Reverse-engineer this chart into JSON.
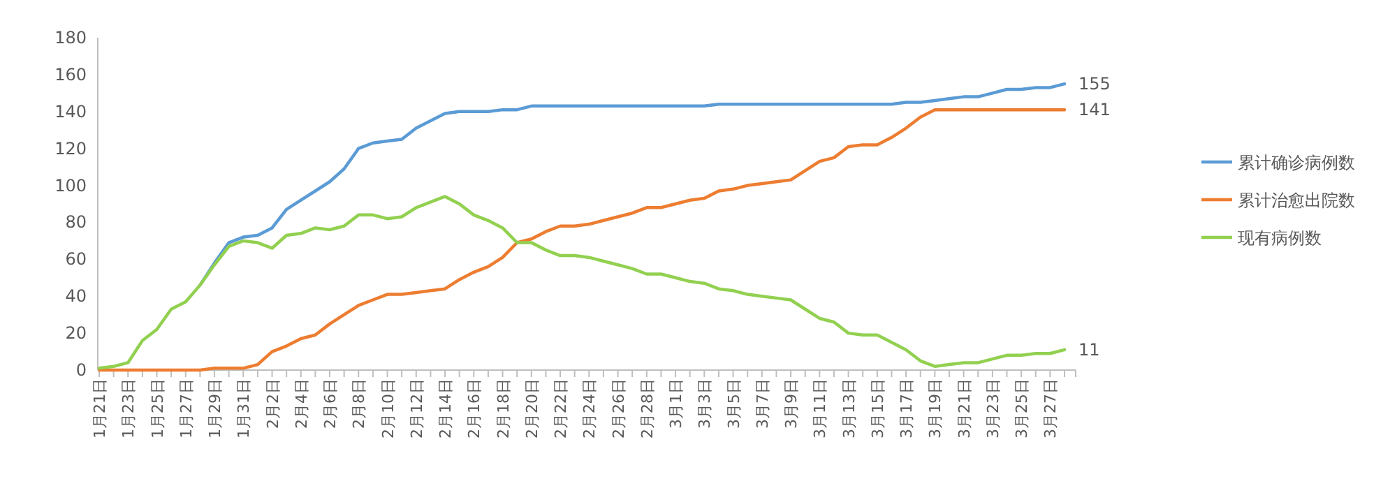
{
  "chart_data": {
    "type": "line",
    "categories": [
      "1月21日",
      null,
      "1月23日",
      null,
      "1月25日",
      null,
      "1月27日",
      null,
      "1月29日",
      null,
      "1月31日",
      null,
      "2月2日",
      null,
      "2月4日",
      null,
      "2月6日",
      null,
      "2月8日",
      null,
      "2月10日",
      null,
      "2月12日",
      null,
      "2月14日",
      null,
      "2月16日",
      null,
      "2月18日",
      null,
      "2月20日",
      null,
      "2月22日",
      null,
      "2月24日",
      null,
      "2月26日",
      null,
      "2月28日",
      null,
      "3月1日",
      null,
      "3月3日",
      null,
      "3月5日",
      null,
      "3月7日",
      null,
      "3月9日",
      null,
      "3月11日",
      null,
      "3月13日",
      null,
      "3月15日",
      null,
      "3月17日",
      null,
      "3月19日",
      null,
      "3月21日",
      null,
      "3月23日",
      null,
      "3月25日",
      null,
      "3月27日",
      null
    ],
    "series": [
      {
        "name": "累计确诊病例数",
        "color": "#5b9bd5",
        "values": [
          null,
          null,
          null,
          null,
          null,
          null,
          null,
          46,
          58,
          69,
          72,
          73,
          77,
          87,
          92,
          97,
          102,
          109,
          120,
          123,
          124,
          125,
          131,
          135,
          139,
          140,
          140,
          140,
          141,
          141,
          143,
          143,
          143,
          143,
          143,
          143,
          143,
          143,
          143,
          143,
          143,
          143,
          143,
          144,
          144,
          144,
          144,
          144,
          144,
          144,
          144,
          144,
          144,
          144,
          144,
          144,
          145,
          145,
          146,
          147,
          148,
          148,
          150,
          152,
          152,
          153,
          153,
          155
        ],
        "value_labels": [
          null,
          null,
          null,
          null,
          null,
          null,
          null,
          null,
          null,
          null,
          null,
          null,
          null,
          null,
          null,
          null,
          null,
          null,
          null,
          null,
          null,
          null,
          null,
          null,
          null,
          null,
          null,
          null,
          null,
          null,
          null,
          null,
          null,
          null,
          null,
          null,
          null,
          null,
          null,
          null,
          null,
          null,
          null,
          null,
          null,
          null,
          null,
          null,
          null,
          null,
          null,
          null,
          null,
          null,
          null,
          null,
          null,
          null,
          null,
          null,
          null,
          null,
          null,
          null,
          null,
          null,
          null,
          "155"
        ]
      },
      {
        "name": "累计治愈出院数",
        "color": "#ed7d31",
        "values": [
          0,
          0,
          0,
          0,
          0,
          0,
          0,
          0,
          1,
          1,
          1,
          3,
          10,
          13,
          17,
          19,
          25,
          30,
          35,
          38,
          41,
          41,
          42,
          43,
          44,
          49,
          53,
          56,
          61,
          69,
          71,
          75,
          78,
          78,
          79,
          81,
          83,
          85,
          88,
          88,
          90,
          92,
          93,
          97,
          98,
          100,
          101,
          102,
          103,
          108,
          113,
          115,
          121,
          122,
          122,
          126,
          131,
          137,
          141,
          141,
          141,
          141,
          141,
          141,
          141,
          141,
          141,
          141
        ],
        "value_labels": [
          null,
          null,
          null,
          null,
          null,
          null,
          null,
          null,
          null,
          null,
          null,
          null,
          null,
          null,
          null,
          null,
          null,
          null,
          null,
          null,
          null,
          null,
          null,
          null,
          null,
          null,
          null,
          null,
          null,
          null,
          null,
          null,
          null,
          null,
          null,
          null,
          null,
          null,
          null,
          null,
          null,
          null,
          null,
          null,
          null,
          null,
          null,
          null,
          null,
          null,
          null,
          null,
          null,
          null,
          null,
          null,
          null,
          null,
          null,
          null,
          null,
          null,
          null,
          null,
          null,
          null,
          null,
          "141"
        ]
      },
      {
        "name": "现有病例数",
        "color": "#92d050",
        "values": [
          1,
          2,
          4,
          16,
          22,
          33,
          37,
          46,
          57,
          67,
          70,
          69,
          66,
          73,
          74,
          77,
          76,
          78,
          84,
          84,
          82,
          83,
          88,
          91,
          94,
          90,
          84,
          81,
          77,
          69,
          69,
          65,
          62,
          62,
          61,
          59,
          57,
          55,
          52,
          52,
          50,
          48,
          47,
          44,
          43,
          41,
          40,
          39,
          38,
          33,
          28,
          26,
          20,
          19,
          19,
          15,
          11,
          5,
          2,
          3,
          4,
          4,
          6,
          8,
          8,
          9,
          9,
          11
        ],
        "value_labels": [
          null,
          null,
          null,
          null,
          null,
          null,
          null,
          null,
          null,
          null,
          null,
          null,
          null,
          null,
          null,
          null,
          null,
          null,
          null,
          null,
          null,
          null,
          null,
          null,
          null,
          null,
          null,
          null,
          null,
          null,
          null,
          null,
          null,
          null,
          null,
          null,
          null,
          null,
          null,
          null,
          null,
          null,
          null,
          null,
          null,
          null,
          null,
          null,
          null,
          null,
          null,
          null,
          null,
          null,
          null,
          null,
          null,
          null,
          null,
          null,
          null,
          null,
          null,
          null,
          null,
          null,
          null,
          "11"
        ]
      }
    ],
    "ylim": [
      0,
      180
    ],
    "yticks": [
      0,
      20,
      40,
      60,
      80,
      100,
      120,
      140,
      160,
      180
    ],
    "legend": "right",
    "grid": false
  }
}
